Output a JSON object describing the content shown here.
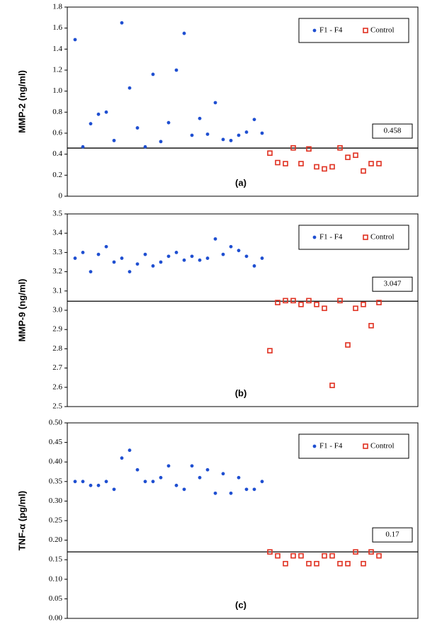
{
  "chart_data": [
    {
      "type": "scatter",
      "ylabel": "MMP-2 (ng/ml)",
      "annotation": "(a)",
      "threshold": 0.458,
      "xlim": [
        0,
        45
      ],
      "ylim": [
        0,
        1.8
      ],
      "yticks": [
        0,
        0.2,
        0.4,
        0.6,
        0.8,
        {
          "value": 1,
          "label": "1.0"
        },
        1.2,
        1.4,
        1.6,
        1.8
      ],
      "legend": "upper right",
      "series": [
        {
          "name": "F1 - F4",
          "color": "#1f4fd1",
          "marker": "circle",
          "x": [
            1,
            2,
            3,
            4,
            5,
            6,
            7,
            8,
            9,
            10,
            11,
            12,
            13,
            14,
            15,
            16,
            17,
            18,
            19,
            20,
            21,
            22,
            23,
            24,
            25
          ],
          "values": [
            1.49,
            0.47,
            0.69,
            0.78,
            0.8,
            0.53,
            1.65,
            1.03,
            0.65,
            0.47,
            1.16,
            0.52,
            0.7,
            1.2,
            1.55,
            0.58,
            0.74,
            0.59,
            0.89,
            0.54,
            0.53,
            0.58,
            0.61,
            0.73,
            0.6
          ]
        },
        {
          "name": "Control",
          "color": "#e03020",
          "marker": "square",
          "x": [
            26,
            27,
            28,
            29,
            30,
            31,
            32,
            33,
            34,
            35,
            36,
            37,
            38,
            39,
            40
          ],
          "values": [
            0.41,
            0.32,
            0.31,
            0.46,
            0.31,
            0.45,
            0.28,
            0.26,
            0.28,
            0.46,
            0.37,
            0.39,
            0.24,
            0.31,
            0.31
          ]
        }
      ]
    },
    {
      "type": "scatter",
      "ylabel": "MMP-9 (ng/ml)",
      "annotation": "(b)",
      "threshold": 3.047,
      "xlim": [
        0,
        45
      ],
      "ylim": [
        2.5,
        3.5
      ],
      "yticks": [
        2.5,
        2.6,
        2.7,
        2.8,
        2.9,
        {
          "value": 3,
          "label": "3.0"
        },
        3.1,
        3.2,
        3.3,
        3.4,
        3.5
      ],
      "legend": "upper right",
      "series": [
        {
          "name": "F1 - F4",
          "color": "#1f4fd1",
          "marker": "circle",
          "x": [
            1,
            2,
            3,
            4,
            5,
            6,
            7,
            8,
            9,
            10,
            11,
            12,
            13,
            14,
            15,
            16,
            17,
            18,
            19,
            20,
            21,
            22,
            23,
            24,
            25
          ],
          "values": [
            3.27,
            3.3,
            3.2,
            3.29,
            3.33,
            3.25,
            3.27,
            3.2,
            3.24,
            3.29,
            3.23,
            3.25,
            3.28,
            3.3,
            3.26,
            3.28,
            3.26,
            3.27,
            3.37,
            3.29,
            3.33,
            3.31,
            3.28,
            3.23,
            3.27
          ]
        },
        {
          "name": "Control",
          "color": "#e03020",
          "marker": "square",
          "x": [
            26,
            27,
            28,
            29,
            30,
            31,
            32,
            33,
            34,
            35,
            36,
            37,
            38,
            39,
            40
          ],
          "values": [
            2.79,
            3.04,
            3.05,
            3.05,
            3.03,
            3.05,
            3.03,
            3.01,
            2.61,
            3.05,
            2.82,
            3.01,
            3.03,
            2.92,
            3.04
          ]
        }
      ]
    },
    {
      "type": "scatter",
      "ylabel": "TNF-α (pg/ml)",
      "annotation": "(c)",
      "threshold": 0.17,
      "xlim": [
        0,
        45
      ],
      "ylim": [
        0,
        0.5
      ],
      "yticks": [
        {
          "value": 0,
          "label": "0.00"
        },
        0.05,
        {
          "value": 0.1,
          "label": "0.10"
        },
        0.15,
        {
          "value": 0.2,
          "label": "0.20"
        },
        0.25,
        {
          "value": 0.3,
          "label": "0.30"
        },
        0.35,
        {
          "value": 0.4,
          "label": "0.40"
        },
        0.45,
        {
          "value": 0.5,
          "label": "0.50"
        }
      ],
      "legend": "upper right",
      "series": [
        {
          "name": "F1 - F4",
          "color": "#1f4fd1",
          "marker": "circle",
          "x": [
            1,
            2,
            3,
            4,
            5,
            6,
            7,
            8,
            9,
            10,
            11,
            12,
            13,
            14,
            15,
            16,
            17,
            18,
            19,
            20,
            21,
            22,
            23,
            24,
            25
          ],
          "values": [
            0.35,
            0.35,
            0.34,
            0.34,
            0.35,
            0.33,
            0.41,
            0.43,
            0.38,
            0.35,
            0.35,
            0.36,
            0.39,
            0.34,
            0.33,
            0.39,
            0.36,
            0.38,
            0.32,
            0.37,
            0.32,
            0.36,
            0.33,
            0.33,
            0.35
          ]
        },
        {
          "name": "Control",
          "color": "#e03020",
          "marker": "square",
          "x": [
            26,
            27,
            28,
            29,
            30,
            31,
            32,
            33,
            34,
            35,
            36,
            37,
            38,
            39,
            40
          ],
          "values": [
            0.17,
            0.16,
            0.14,
            0.16,
            0.16,
            0.14,
            0.14,
            0.16,
            0.16,
            0.14,
            0.14,
            0.17,
            0.14,
            0.17,
            0.16
          ]
        }
      ]
    }
  ]
}
